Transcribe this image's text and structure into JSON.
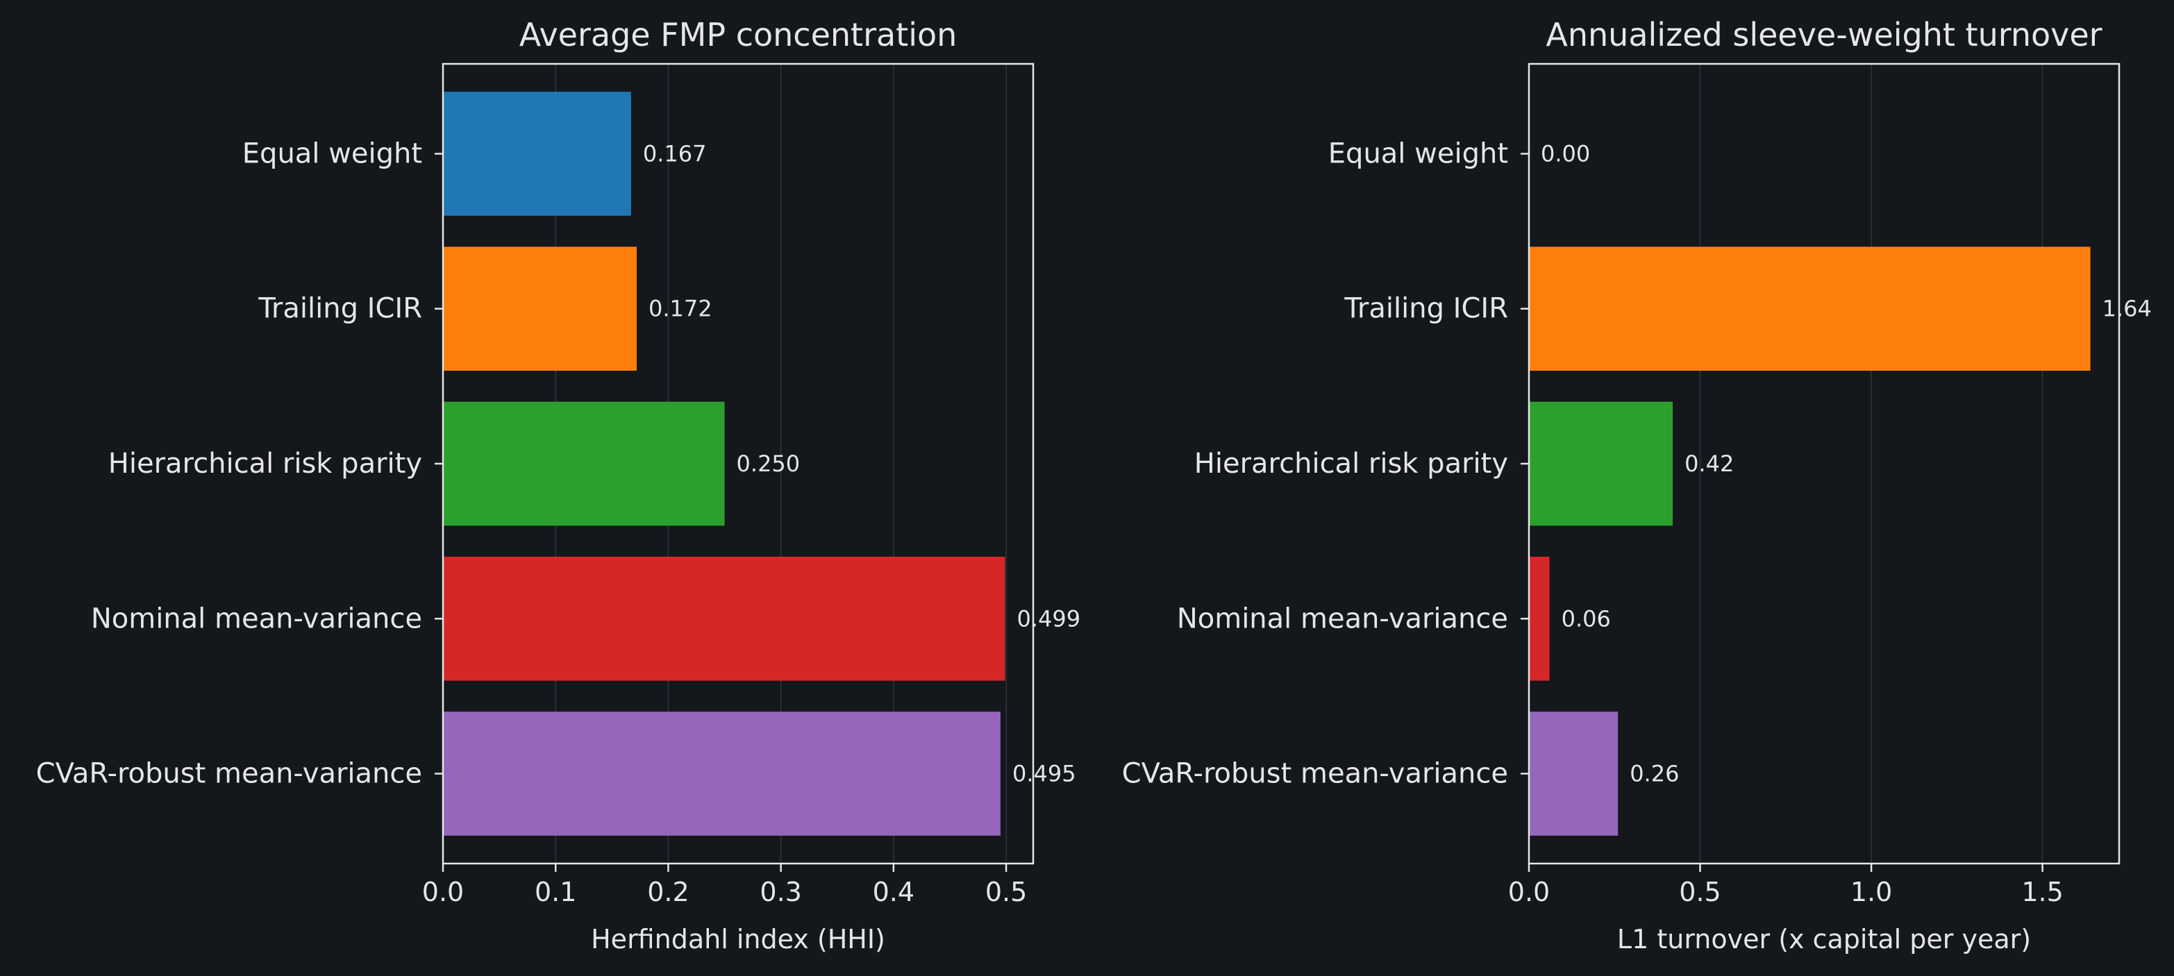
{
  "chart_data": [
    {
      "type": "bar",
      "orientation": "horizontal",
      "title": "Average FMP concentration",
      "xlabel": "Herfindahl index (HHI)",
      "ylabel": "",
      "categories": [
        "Equal weight",
        "Trailing ICIR",
        "Hierarchical risk parity",
        "Nominal mean-variance",
        "CVaR-robust mean-variance"
      ],
      "values": [
        0.167,
        0.172,
        0.25,
        0.499,
        0.495
      ],
      "value_labels": [
        "0.167",
        "0.172",
        "0.250",
        "0.499",
        "0.495"
      ],
      "colors": [
        "#1f77b4",
        "#ff7f0e",
        "#2ca02c",
        "#d62728",
        "#9467bd"
      ],
      "xlim": [
        0,
        0.524
      ],
      "xticks": [
        0.0,
        0.1,
        0.2,
        0.3,
        0.4,
        0.5
      ],
      "xtick_labels": [
        "0.0",
        "0.1",
        "0.2",
        "0.3",
        "0.4",
        "0.5"
      ],
      "grid": "x"
    },
    {
      "type": "bar",
      "orientation": "horizontal",
      "title": "Annualized sleeve-weight turnover",
      "xlabel": "L1 turnover (x capital per year)",
      "ylabel": "",
      "categories": [
        "Equal weight",
        "Trailing ICIR",
        "Hierarchical risk parity",
        "Nominal mean-variance",
        "CVaR-robust mean-variance"
      ],
      "values": [
        0.0,
        1.64,
        0.42,
        0.06,
        0.26
      ],
      "value_labels": [
        "0.00",
        "1.64",
        "0.42",
        "0.06",
        "0.26"
      ],
      "colors": [
        "#1f77b4",
        "#ff7f0e",
        "#2ca02c",
        "#d62728",
        "#9467bd"
      ],
      "xlim": [
        0,
        1.724
      ],
      "xticks": [
        0.0,
        0.5,
        1.0,
        1.5
      ],
      "xtick_labels": [
        "0.0",
        "0.5",
        "1.0",
        "1.5"
      ],
      "grid": "x"
    }
  ]
}
